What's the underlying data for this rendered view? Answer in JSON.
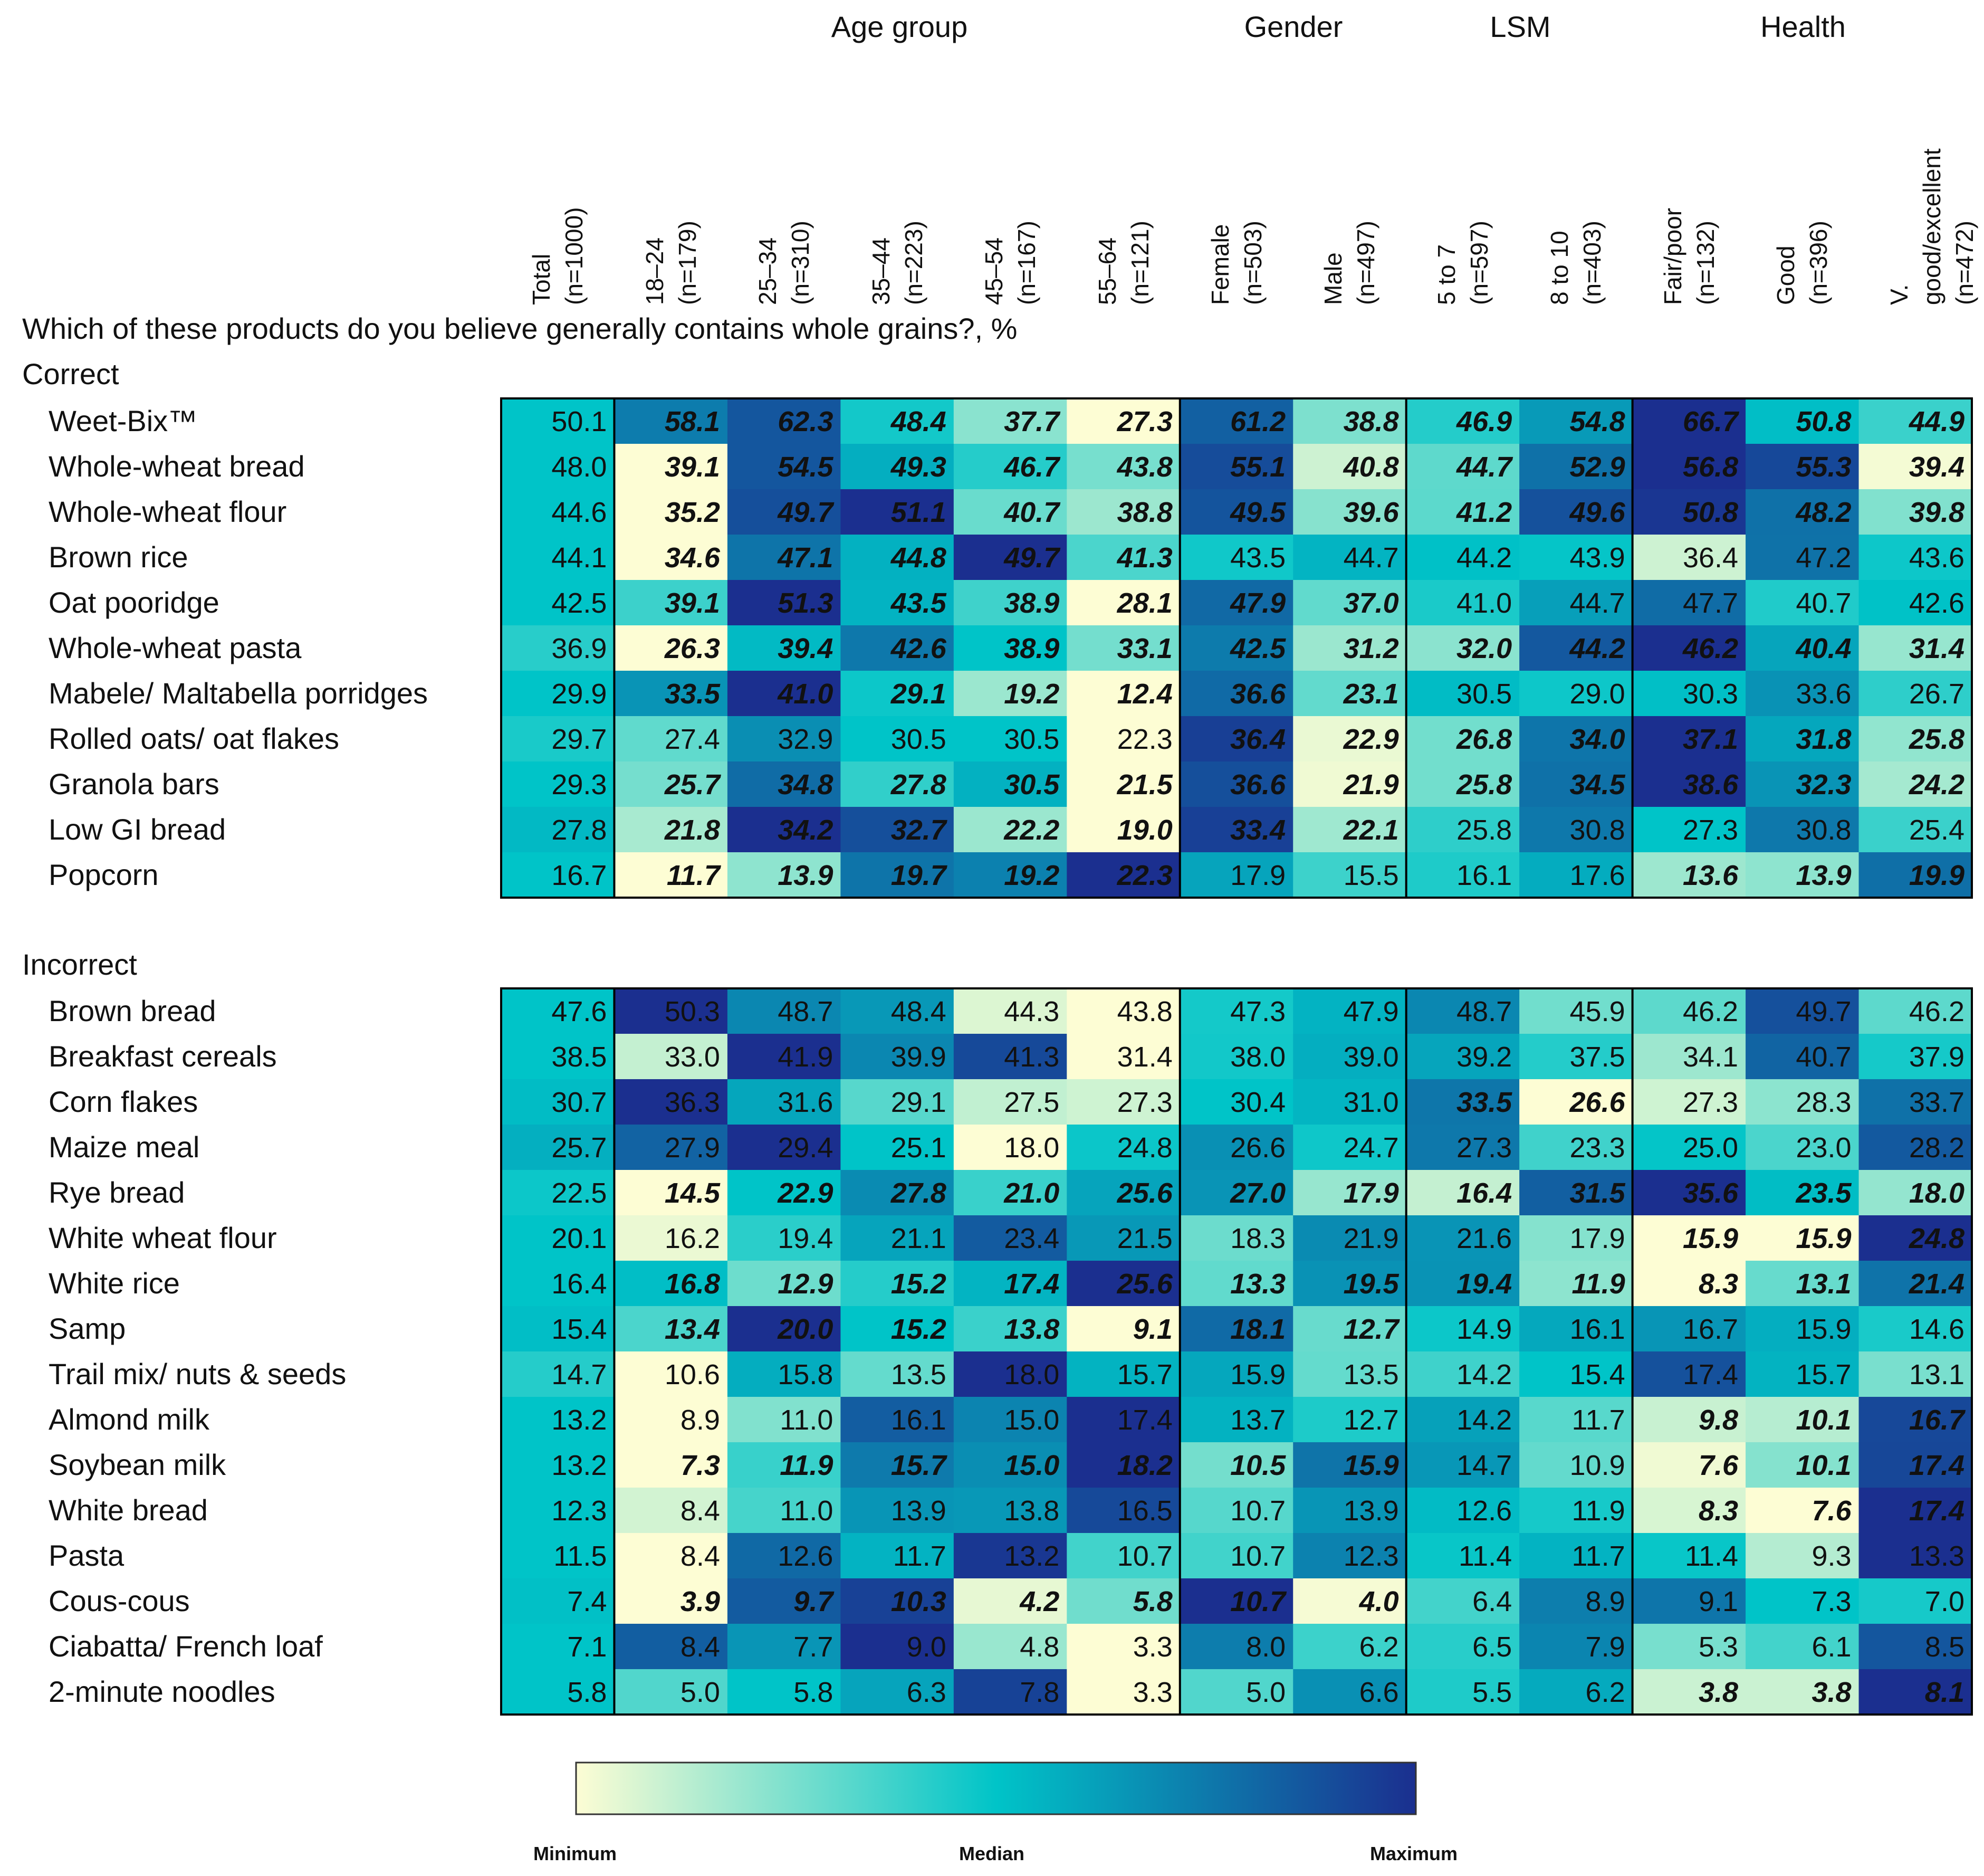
{
  "question": "Which of these products do you believe generally contains whole grains?, %",
  "groups": [
    {
      "label": "Age group"
    },
    {
      "label": "Gender"
    },
    {
      "label": "LSM"
    },
    {
      "label": "Health"
    }
  ],
  "columns": [
    {
      "line1": "Total",
      "line2": "(n=1000)"
    },
    {
      "line1": "18–24",
      "line2": "(n=179)"
    },
    {
      "line1": "25–34",
      "line2": "(n=310)"
    },
    {
      "line1": "35–44",
      "line2": "(n=223)"
    },
    {
      "line1": "45–54",
      "line2": "(n=167)"
    },
    {
      "line1": "55–64",
      "line2": "(n=121)"
    },
    {
      "line1": "Female",
      "line2": "(n=503)"
    },
    {
      "line1": "Male",
      "line2": "(n=497)"
    },
    {
      "line1": "5 to 7",
      "line2": "(n=597)"
    },
    {
      "line1": "8 to 10",
      "line2": "(n=403)"
    },
    {
      "line1": "Fair/poor",
      "line2": "(n=132)"
    },
    {
      "line1": "Good",
      "line2": "(n=396)"
    },
    {
      "line1": "V. good/excellent",
      "line2": "(n=472)"
    }
  ],
  "sections": {
    "correct": {
      "title": "Correct",
      "rows": [
        {
          "label": "Weet-Bix™",
          "values": [
            "50.1",
            "58.1",
            "62.3",
            "48.4",
            "37.7",
            "27.3",
            "61.2",
            "38.8",
            "46.9",
            "54.8",
            "66.7",
            "50.8",
            "44.9"
          ],
          "bold": [
            0,
            1,
            1,
            1,
            1,
            1,
            1,
            1,
            1,
            1,
            1,
            1,
            1
          ]
        },
        {
          "label": "Whole-wheat bread",
          "values": [
            "48.0",
            "39.1",
            "54.5",
            "49.3",
            "46.7",
            "43.8",
            "55.1",
            "40.8",
            "44.7",
            "52.9",
            "56.8",
            "55.3",
            "39.4"
          ],
          "bold": [
            0,
            1,
            1,
            1,
            1,
            1,
            1,
            1,
            1,
            1,
            1,
            1,
            1
          ]
        },
        {
          "label": "Whole-wheat flour",
          "values": [
            "44.6",
            "35.2",
            "49.7",
            "51.1",
            "40.7",
            "38.8",
            "49.5",
            "39.6",
            "41.2",
            "49.6",
            "50.8",
            "48.2",
            "39.8"
          ],
          "bold": [
            0,
            1,
            1,
            1,
            1,
            1,
            1,
            1,
            1,
            1,
            1,
            1,
            1
          ]
        },
        {
          "label": "Brown rice",
          "values": [
            "44.1",
            "34.6",
            "47.1",
            "44.8",
            "49.7",
            "41.3",
            "43.5",
            "44.7",
            "44.2",
            "43.9",
            "36.4",
            "47.2",
            "43.6"
          ],
          "bold": [
            0,
            1,
            1,
            1,
            1,
            1,
            0,
            0,
            0,
            0,
            0,
            0,
            0
          ]
        },
        {
          "label": "Oat pooridge",
          "values": [
            "42.5",
            "39.1",
            "51.3",
            "43.5",
            "38.9",
            "28.1",
            "47.9",
            "37.0",
            "41.0",
            "44.7",
            "47.7",
            "40.7",
            "42.6"
          ],
          "bold": [
            0,
            1,
            1,
            1,
            1,
            1,
            1,
            1,
            0,
            0,
            0,
            0,
            0
          ]
        },
        {
          "label": "Whole-wheat pasta",
          "values": [
            "36.9",
            "26.3",
            "39.4",
            "42.6",
            "38.9",
            "33.1",
            "42.5",
            "31.2",
            "32.0",
            "44.2",
            "46.2",
            "40.4",
            "31.4"
          ],
          "bold": [
            0,
            1,
            1,
            1,
            1,
            1,
            1,
            1,
            1,
            1,
            1,
            1,
            1
          ]
        },
        {
          "label": "Mabele/ Maltabella porridges",
          "values": [
            "29.9",
            "33.5",
            "41.0",
            "29.1",
            "19.2",
            "12.4",
            "36.6",
            "23.1",
            "30.5",
            "29.0",
            "30.3",
            "33.6",
            "26.7"
          ],
          "bold": [
            0,
            1,
            1,
            1,
            1,
            1,
            1,
            1,
            0,
            0,
            0,
            0,
            0
          ]
        },
        {
          "label": "Rolled oats/ oat flakes",
          "values": [
            "29.7",
            "27.4",
            "32.9",
            "30.5",
            "30.5",
            "22.3",
            "36.4",
            "22.9",
            "26.8",
            "34.0",
            "37.1",
            "31.8",
            "25.8"
          ],
          "bold": [
            0,
            0,
            0,
            0,
            0,
            0,
            1,
            1,
            1,
            1,
            1,
            1,
            1
          ]
        },
        {
          "label": "Granola bars",
          "values": [
            "29.3",
            "25.7",
            "34.8",
            "27.8",
            "30.5",
            "21.5",
            "36.6",
            "21.9",
            "25.8",
            "34.5",
            "38.6",
            "32.3",
            "24.2"
          ],
          "bold": [
            0,
            1,
            1,
            1,
            1,
            1,
            1,
            1,
            1,
            1,
            1,
            1,
            1
          ]
        },
        {
          "label": "Low GI bread",
          "values": [
            "27.8",
            "21.8",
            "34.2",
            "32.7",
            "22.2",
            "19.0",
            "33.4",
            "22.1",
            "25.8",
            "30.8",
            "27.3",
            "30.8",
            "25.4"
          ],
          "bold": [
            0,
            1,
            1,
            1,
            1,
            1,
            1,
            1,
            0,
            0,
            0,
            0,
            0
          ]
        },
        {
          "label": "Popcorn",
          "values": [
            "16.7",
            "11.7",
            "13.9",
            "19.7",
            "19.2",
            "22.3",
            "17.9",
            "15.5",
            "16.1",
            "17.6",
            "13.6",
            "13.9",
            "19.9"
          ],
          "bold": [
            0,
            1,
            1,
            1,
            1,
            1,
            0,
            0,
            0,
            0,
            1,
            1,
            1
          ]
        }
      ]
    },
    "incorrect": {
      "title": "Incorrect",
      "rows": [
        {
          "label": "Brown bread",
          "values": [
            "47.6",
            "50.3",
            "48.7",
            "48.4",
            "44.3",
            "43.8",
            "47.3",
            "47.9",
            "48.7",
            "45.9",
            "46.2",
            "49.7",
            "46.2"
          ],
          "bold": [
            0,
            0,
            0,
            0,
            0,
            0,
            0,
            0,
            0,
            0,
            0,
            0,
            0
          ]
        },
        {
          "label": "Breakfast cereals",
          "values": [
            "38.5",
            "33.0",
            "41.9",
            "39.9",
            "41.3",
            "31.4",
            "38.0",
            "39.0",
            "39.2",
            "37.5",
            "34.1",
            "40.7",
            "37.9"
          ],
          "bold": [
            0,
            0,
            0,
            0,
            0,
            0,
            0,
            0,
            0,
            0,
            0,
            0,
            0
          ]
        },
        {
          "label": "Corn flakes",
          "values": [
            "30.7",
            "36.3",
            "31.6",
            "29.1",
            "27.5",
            "27.3",
            "30.4",
            "31.0",
            "33.5",
            "26.6",
            "27.3",
            "28.3",
            "33.7"
          ],
          "bold": [
            0,
            0,
            0,
            0,
            0,
            0,
            0,
            0,
            1,
            1,
            0,
            0,
            0
          ]
        },
        {
          "label": "Maize meal",
          "values": [
            "25.7",
            "27.9",
            "29.4",
            "25.1",
            "18.0",
            "24.8",
            "26.6",
            "24.7",
            "27.3",
            "23.3",
            "25.0",
            "23.0",
            "28.2"
          ],
          "bold": [
            0,
            0,
            0,
            0,
            0,
            0,
            0,
            0,
            0,
            0,
            0,
            0,
            0
          ]
        },
        {
          "label": "Rye bread",
          "values": [
            "22.5",
            "14.5",
            "22.9",
            "27.8",
            "21.0",
            "25.6",
            "27.0",
            "17.9",
            "16.4",
            "31.5",
            "35.6",
            "23.5",
            "18.0"
          ],
          "bold": [
            0,
            1,
            1,
            1,
            1,
            1,
            1,
            1,
            1,
            1,
            1,
            1,
            1
          ]
        },
        {
          "label": "White wheat flour",
          "values": [
            "20.1",
            "16.2",
            "19.4",
            "21.1",
            "23.4",
            "21.5",
            "18.3",
            "21.9",
            "21.6",
            "17.9",
            "15.9",
            "15.9",
            "24.8"
          ],
          "bold": [
            0,
            0,
            0,
            0,
            0,
            0,
            0,
            0,
            0,
            0,
            1,
            1,
            1
          ]
        },
        {
          "label": "White rice",
          "values": [
            "16.4",
            "16.8",
            "12.9",
            "15.2",
            "17.4",
            "25.6",
            "13.3",
            "19.5",
            "19.4",
            "11.9",
            "8.3",
            "13.1",
            "21.4"
          ],
          "bold": [
            0,
            1,
            1,
            1,
            1,
            1,
            1,
            1,
            1,
            1,
            1,
            1,
            1
          ]
        },
        {
          "label": "Samp",
          "values": [
            "15.4",
            "13.4",
            "20.0",
            "15.2",
            "13.8",
            "9.1",
            "18.1",
            "12.7",
            "14.9",
            "16.1",
            "16.7",
            "15.9",
            "14.6"
          ],
          "bold": [
            0,
            1,
            1,
            1,
            1,
            1,
            1,
            1,
            0,
            0,
            0,
            0,
            0
          ]
        },
        {
          "label": "Trail mix/ nuts & seeds",
          "values": [
            "14.7",
            "10.6",
            "15.8",
            "13.5",
            "18.0",
            "15.7",
            "15.9",
            "13.5",
            "14.2",
            "15.4",
            "17.4",
            "15.7",
            "13.1"
          ],
          "bold": [
            0,
            0,
            0,
            0,
            0,
            0,
            0,
            0,
            0,
            0,
            0,
            0,
            0
          ]
        },
        {
          "label": "Almond milk",
          "values": [
            "13.2",
            "8.9",
            "11.0",
            "16.1",
            "15.0",
            "17.4",
            "13.7",
            "12.7",
            "14.2",
            "11.7",
            "9.8",
            "10.1",
            "16.7"
          ],
          "bold": [
            0,
            0,
            0,
            0,
            0,
            0,
            0,
            0,
            0,
            0,
            1,
            1,
            1
          ]
        },
        {
          "label": "Soybean milk",
          "values": [
            "13.2",
            "7.3",
            "11.9",
            "15.7",
            "15.0",
            "18.2",
            "10.5",
            "15.9",
            "14.7",
            "10.9",
            "7.6",
            "10.1",
            "17.4"
          ],
          "bold": [
            0,
            1,
            1,
            1,
            1,
            1,
            1,
            1,
            0,
            0,
            1,
            1,
            1
          ]
        },
        {
          "label": "White bread",
          "values": [
            "12.3",
            "8.4",
            "11.0",
            "13.9",
            "13.8",
            "16.5",
            "10.7",
            "13.9",
            "12.6",
            "11.9",
            "8.3",
            "7.6",
            "17.4"
          ],
          "bold": [
            0,
            0,
            0,
            0,
            0,
            0,
            0,
            0,
            0,
            0,
            1,
            1,
            1
          ]
        },
        {
          "label": "Pasta",
          "values": [
            "11.5",
            "8.4",
            "12.6",
            "11.7",
            "13.2",
            "10.7",
            "10.7",
            "12.3",
            "11.4",
            "11.7",
            "11.4",
            "9.3",
            "13.3"
          ],
          "bold": [
            0,
            0,
            0,
            0,
            0,
            0,
            0,
            0,
            0,
            0,
            0,
            0,
            0
          ]
        },
        {
          "label": "Cous-cous",
          "values": [
            "7.4",
            "3.9",
            "9.7",
            "10.3",
            "4.2",
            "5.8",
            "10.7",
            "4.0",
            "6.4",
            "8.9",
            "9.1",
            "7.3",
            "7.0"
          ],
          "bold": [
            0,
            1,
            1,
            1,
            1,
            1,
            1,
            1,
            0,
            0,
            0,
            0,
            0
          ]
        },
        {
          "label": "Ciabatta/ French loaf",
          "values": [
            "7.1",
            "8.4",
            "7.7",
            "9.0",
            "4.8",
            "3.3",
            "8.0",
            "6.2",
            "6.5",
            "7.9",
            "5.3",
            "6.1",
            "8.5"
          ],
          "bold": [
            0,
            0,
            0,
            0,
            0,
            0,
            0,
            0,
            0,
            0,
            0,
            0,
            0
          ]
        },
        {
          "label": "2-minute noodles",
          "values": [
            "5.8",
            "5.0",
            "5.8",
            "6.3",
            "7.8",
            "3.3",
            "5.0",
            "6.6",
            "5.5",
            "6.2",
            "3.8",
            "3.8",
            "8.1"
          ],
          "bold": [
            0,
            0,
            0,
            0,
            0,
            0,
            0,
            0,
            0,
            0,
            1,
            1,
            1
          ]
        }
      ]
    }
  },
  "legend": {
    "min_label": "Minimum",
    "median_label": "Median",
    "max_label": "Maximum"
  },
  "colors": {
    "min": "#fdfdd4",
    "median": "#00c4c8",
    "max": "#1b2f8f",
    "border": "#000000"
  },
  "chart_data": {
    "type": "heatmap",
    "title": "Which of these products do you believe generally contains whole grains?, %",
    "color_scale": "row-wise: Minimum → Median → Maximum",
    "column_groups": [
      "Age group",
      "Gender",
      "LSM",
      "Health"
    ]
  }
}
